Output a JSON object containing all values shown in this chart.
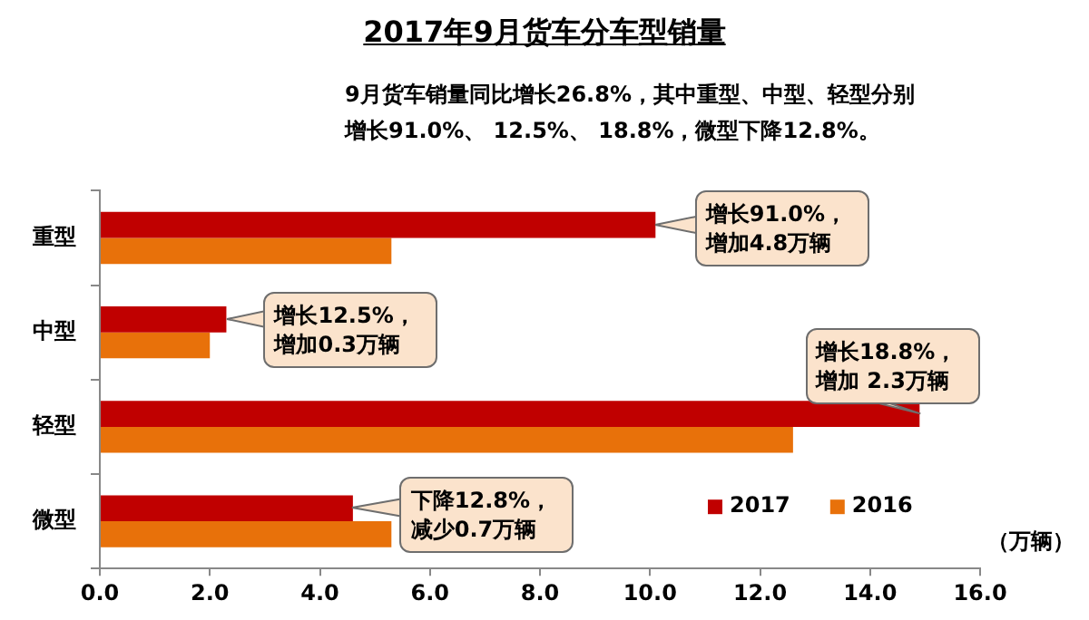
{
  "chart_data": {
    "type": "bar",
    "orientation": "horizontal",
    "title": "2017年9月货车分车型销量",
    "subtitle": "9月货车销量同比增长26.8%，其中重型、中型、轻型分别增长91.0%、 12.5%、 18.8%，微型下降12.8%。",
    "xlabel": "（万辆）",
    "categories": [
      "重型",
      "中型",
      "轻型",
      "微型"
    ],
    "series": [
      {
        "name": "2017",
        "color": "#c00000",
        "values": [
          10.1,
          2.3,
          14.9,
          4.6
        ]
      },
      {
        "name": "2016",
        "color": "#e8710a",
        "values": [
          5.3,
          2.0,
          12.6,
          5.3
        ]
      }
    ],
    "xlim": [
      0,
      16
    ],
    "xticks": [
      {
        "value": 0,
        "label": "0.0"
      },
      {
        "value": 2,
        "label": "2.0"
      },
      {
        "value": 4,
        "label": "4.0"
      },
      {
        "value": 6,
        "label": "6.0"
      },
      {
        "value": 8,
        "label": "8.0"
      },
      {
        "value": 10,
        "label": "10.0"
      },
      {
        "value": 12,
        "label": "12.0"
      },
      {
        "value": 14,
        "label": "14.0"
      },
      {
        "value": 16,
        "label": "16.0"
      }
    ],
    "annotations": [
      {
        "text": "增长91.0%，增加4.8万辆",
        "x": 10.1,
        "y": "重型"
      },
      {
        "text": "增长12.5%，增加0.3万辆",
        "x": 2.3,
        "y": "中型"
      },
      {
        "text": "增长18.8%，增加 2.3万辆",
        "x": 14.9,
        "y": "轻型"
      },
      {
        "text": "下降12.8%，减少0.7万辆",
        "x": 4.6,
        "y": "微型"
      }
    ],
    "grid": false,
    "legend": "bottom right"
  }
}
